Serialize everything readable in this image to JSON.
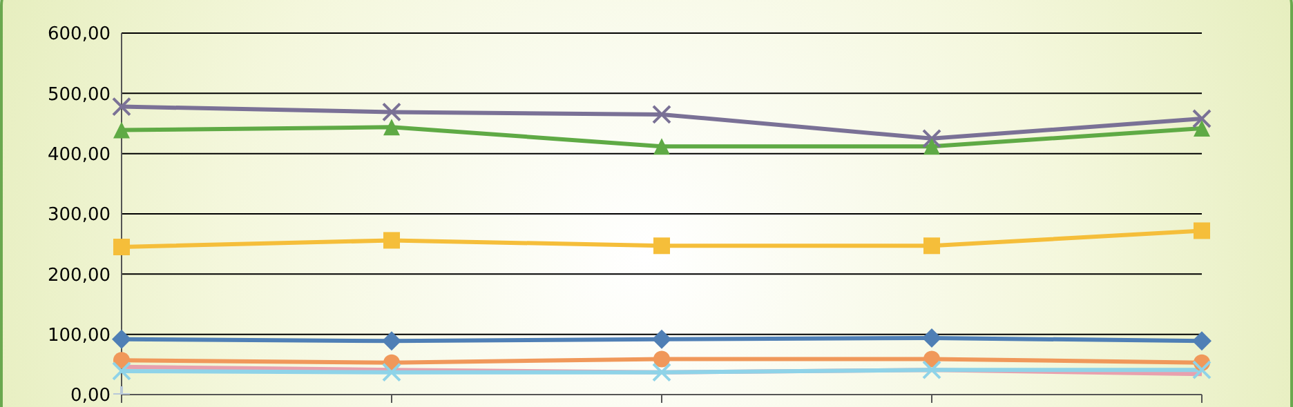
{
  "chart_data": {
    "type": "line",
    "categories": [
      null,
      null,
      null,
      null,
      null
    ],
    "series": [
      {
        "color": "#7a7196",
        "marker": "cross",
        "values": [
          478,
          469,
          465,
          425,
          458
        ]
      },
      {
        "color": "#5faa45",
        "marker": "triangle",
        "values": [
          439,
          444,
          412,
          412,
          442
        ]
      },
      {
        "color": "#f5be3a",
        "marker": "square",
        "values": [
          245,
          256,
          247,
          247,
          272
        ]
      },
      {
        "color": "#4f7fb5",
        "marker": "diamond",
        "values": [
          92,
          89,
          92,
          94,
          89
        ]
      },
      {
        "color": "#f0985a",
        "marker": "circle",
        "values": [
          57,
          53,
          59,
          59,
          53
        ]
      },
      {
        "color": "#e8a0ae",
        "marker": "none",
        "values": [
          46,
          41,
          37,
          41,
          34
        ]
      },
      {
        "color": "#8fd3e8",
        "marker": "cross",
        "values": [
          39,
          37,
          37,
          41,
          41
        ]
      },
      {
        "color": "#b8c8d8",
        "marker": "cross",
        "values": [
          0,
          null,
          null,
          null,
          null
        ]
      }
    ],
    "ylim": [
      0,
      600
    ],
    "yticks": [
      {
        "value": 0,
        "label": "0,00"
      },
      {
        "value": 100,
        "label": "100,00"
      },
      {
        "value": 200,
        "label": "200,00"
      },
      {
        "value": 300,
        "label": "300,00"
      },
      {
        "value": 400,
        "label": "400,00"
      },
      {
        "value": 500,
        "label": "500,00"
      },
      {
        "value": 600,
        "label": "600,00"
      }
    ],
    "grid": "y",
    "tick_labels": "y"
  }
}
